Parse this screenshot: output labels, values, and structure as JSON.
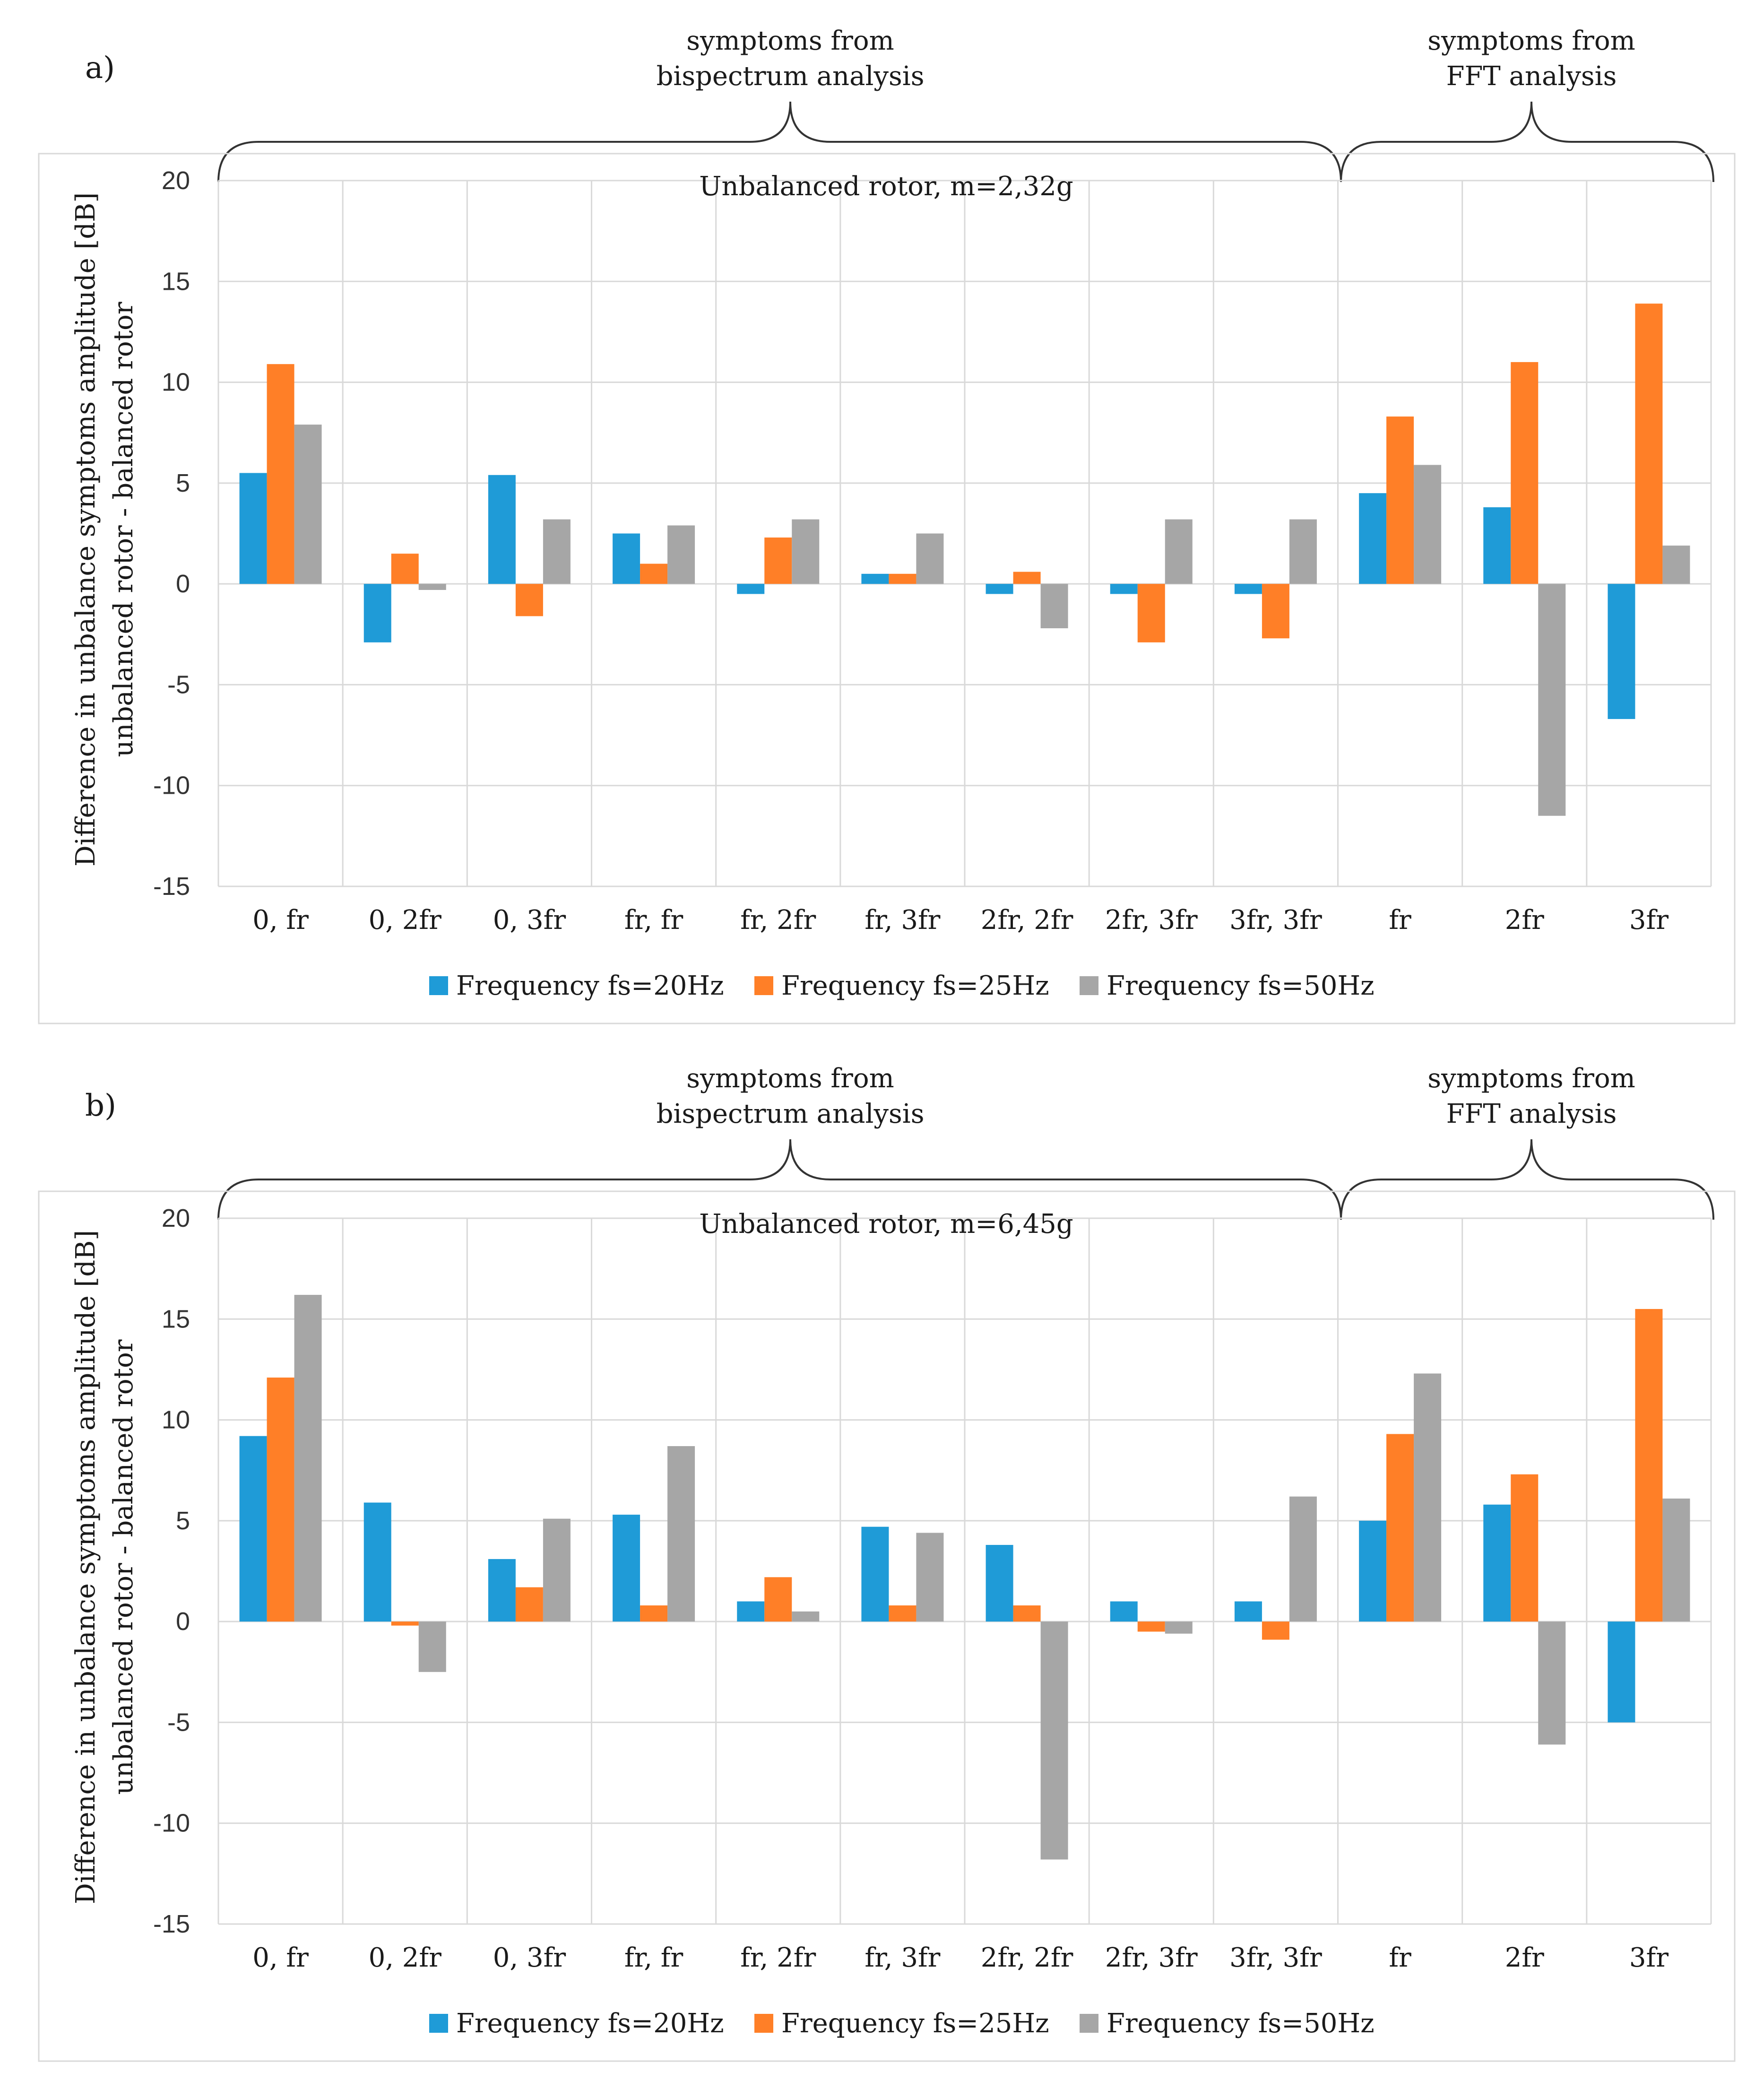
{
  "panels": [
    {
      "label": "a)",
      "groups": [
        {
          "label_line1": "symptoms from",
          "label_line2": "bispectrum analysis"
        },
        {
          "label_line1": "symptoms from",
          "label_line2": "FFT analysis"
        }
      ]
    },
    {
      "label": "b)",
      "groups": [
        {
          "label_line1": "symptoms from",
          "label_line2": "bispectrum analysis"
        },
        {
          "label_line1": "symptoms from",
          "label_line2": "FFT analysis"
        }
      ]
    }
  ],
  "colors": {
    "fs20": "#1f9bd7",
    "fs25": "#ff7f27",
    "fs50": "#a6a6a6"
  },
  "chart_data": [
    {
      "type": "bar",
      "title": "Unbalanced rotor,  m=2,32g",
      "ylabel_line1": "Difference in unbalance symptoms amplitude [dB]",
      "ylabel_line2": "unbalanced rotor - balanced rotor",
      "ylim": [
        -15,
        20
      ],
      "yticks": [
        "-15",
        "-10",
        "-5",
        "0",
        "5",
        "10",
        "15",
        "20"
      ],
      "categories": [
        "0, fr",
        "0, 2fr",
        "0, 3fr",
        "fr, fr",
        "fr, 2fr",
        "fr, 3fr",
        "2fr, 2fr",
        "2fr, 3fr",
        "3fr, 3fr",
        "fr",
        "2fr",
        "3fr"
      ],
      "series": [
        {
          "name": "Frequency fs=20Hz",
          "values": [
            5.5,
            -2.9,
            5.4,
            2.5,
            -0.5,
            0.5,
            -0.5,
            -0.5,
            -0.5,
            4.5,
            3.8,
            -6.7
          ]
        },
        {
          "name": "Frequency fs=25Hz",
          "values": [
            10.9,
            1.5,
            -1.6,
            1.0,
            2.3,
            0.5,
            0.6,
            -2.9,
            -2.7,
            8.3,
            11.0,
            13.9
          ]
        },
        {
          "name": "Frequency fs=50Hz",
          "values": [
            7.9,
            -0.3,
            3.2,
            2.9,
            3.2,
            2.5,
            -2.2,
            3.2,
            3.2,
            5.9,
            -11.5,
            1.9
          ]
        }
      ],
      "legend": "bottom",
      "grid": true
    },
    {
      "type": "bar",
      "title": "Unbalanced rotor,  m=6,45g",
      "ylabel_line1": "Difference in unbalance symptoms amplitude [dB]",
      "ylabel_line2": "unbalanced rotor - balanced rotor",
      "ylim": [
        -15,
        20
      ],
      "yticks": [
        "-15",
        "-10",
        "-5",
        "0",
        "5",
        "10",
        "15",
        "20"
      ],
      "categories": [
        "0, fr",
        "0, 2fr",
        "0, 3fr",
        "fr, fr",
        "fr, 2fr",
        "fr, 3fr",
        "2fr, 2fr",
        "2fr, 3fr",
        "3fr, 3fr",
        "fr",
        "2fr",
        "3fr"
      ],
      "series": [
        {
          "name": "Frequency fs=20Hz",
          "values": [
            9.2,
            5.9,
            3.1,
            5.3,
            1.0,
            4.7,
            3.8,
            1.0,
            1.0,
            5.0,
            5.8,
            -5.0
          ]
        },
        {
          "name": "Frequency fs=25Hz",
          "values": [
            12.1,
            -0.2,
            1.7,
            0.8,
            2.2,
            0.8,
            0.8,
            -0.5,
            -0.9,
            9.3,
            7.3,
            15.5
          ]
        },
        {
          "name": "Frequency fs=50Hz",
          "values": [
            16.2,
            -2.5,
            5.1,
            8.7,
            0.5,
            4.4,
            -11.8,
            -0.6,
            6.2,
            12.3,
            -6.1,
            6.1
          ]
        }
      ],
      "legend": "bottom",
      "grid": true
    }
  ]
}
